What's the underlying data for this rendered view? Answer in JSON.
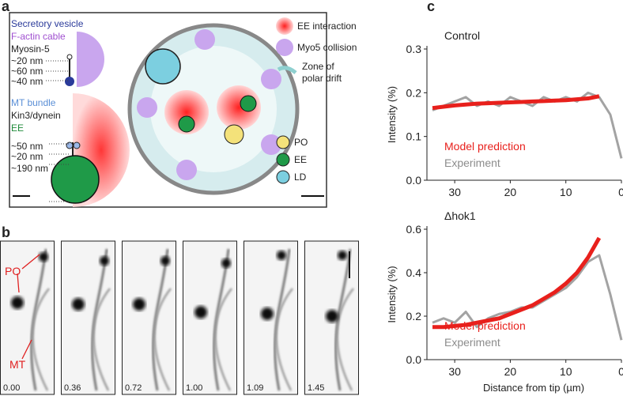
{
  "panel_labels": [
    "a",
    "b",
    "c"
  ],
  "panel_a": {
    "myosin": {
      "lines": [
        "Secretory vesicle",
        "F-actin cable",
        "Myosin-5"
      ],
      "dims": [
        "~20 nm",
        "~60 nm",
        "~40 nm"
      ]
    },
    "kinesin": {
      "lines": [
        "MT bundle",
        "Kin3/dynein",
        "EE"
      ],
      "dims": [
        "~50 nm",
        "~20 nm",
        "~190 nm"
      ]
    },
    "legend": [
      "EE interaction",
      "Myo5 collision",
      "Zone of",
      "polar drift"
    ],
    "organelles": [
      "PO",
      "EE",
      "LD"
    ]
  },
  "panel_b": {
    "labels": [
      "PO",
      "MT"
    ],
    "times": [
      "0.00",
      "0.36",
      "0.72",
      "1.00",
      "1.09",
      "1.45"
    ]
  },
  "chart_data": [
    {
      "type": "line",
      "title": "Control",
      "ylabel": "Intensity (%)",
      "x": [
        34,
        32,
        30,
        28,
        26,
        24,
        22,
        20,
        18,
        16,
        14,
        12,
        10,
        8,
        6,
        4,
        2,
        0
      ],
      "series": [
        {
          "name": "Model prediction",
          "color": "#e8201c",
          "values": [
            0.165,
            0.168,
            0.171,
            0.173,
            0.175,
            0.176,
            0.177,
            0.178,
            0.179,
            0.18,
            0.181,
            0.182,
            0.183,
            0.185,
            0.187,
            0.192,
            null,
            null
          ]
        },
        {
          "name": "Experiment",
          "color": "#8c8c8c",
          "values": [
            0.16,
            0.17,
            0.18,
            0.19,
            0.17,
            0.18,
            0.17,
            0.19,
            0.18,
            0.17,
            0.19,
            0.18,
            0.19,
            0.18,
            0.2,
            0.19,
            0.15,
            0.05
          ]
        }
      ],
      "xlim": [
        35,
        0
      ],
      "xticks": [
        30,
        20,
        10,
        0
      ],
      "ylim": [
        0,
        0.3
      ],
      "yticks": [
        {
          "value": 0,
          "label": "0.0"
        },
        0.1,
        0.2,
        0.3
      ]
    },
    {
      "type": "line",
      "title": "Δhok1",
      "ylabel": "Intensity (%)",
      "xlabel": "Distance from tip (µm)",
      "x": [
        34,
        32,
        30,
        28,
        26,
        24,
        22,
        20,
        18,
        16,
        14,
        12,
        10,
        8,
        6,
        4,
        2,
        0
      ],
      "series": [
        {
          "name": "Model prediction",
          "color": "#e8201c",
          "values": [
            0.15,
            0.15,
            0.155,
            0.16,
            0.17,
            0.18,
            0.19,
            0.21,
            0.23,
            0.25,
            0.28,
            0.31,
            0.35,
            0.4,
            0.47,
            0.56,
            null,
            null
          ]
        },
        {
          "name": "Experiment",
          "color": "#8c8c8c",
          "values": [
            0.17,
            0.19,
            0.17,
            0.22,
            0.15,
            0.19,
            0.21,
            0.22,
            0.24,
            0.24,
            0.27,
            0.3,
            0.33,
            0.38,
            0.45,
            0.48,
            0.3,
            0.09
          ]
        }
      ],
      "xlim": [
        35,
        0
      ],
      "xticks": [
        30,
        20,
        10,
        0
      ],
      "ylim": [
        0,
        0.6
      ],
      "yticks": [
        {
          "value": 0,
          "label": "0.0"
        },
        0.2,
        0.4,
        0.6
      ]
    }
  ]
}
